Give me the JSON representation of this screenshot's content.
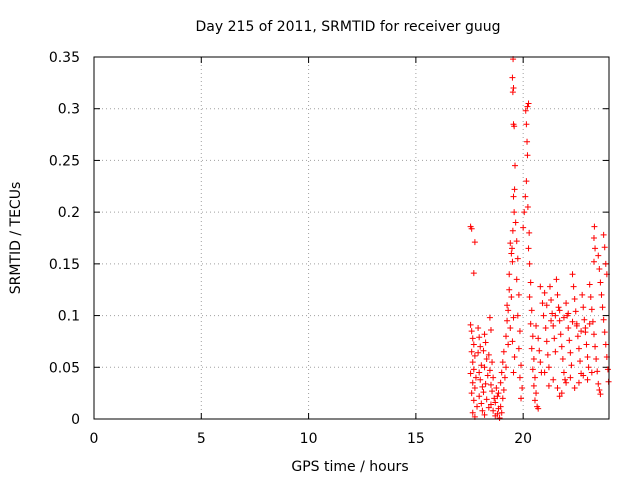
{
  "chart_data": {
    "type": "scatter",
    "title": "Day 215 of 2011, SRMTID for receiver guug",
    "xlabel": "GPS time / hours",
    "ylabel": "SRMTID / TECUs",
    "xlim": [
      0,
      24
    ],
    "ylim": [
      0,
      0.35
    ],
    "xticks": [
      0,
      5,
      10,
      15,
      20
    ],
    "xtick_labels": [
      "0",
      "5",
      "10",
      "15",
      "20"
    ],
    "yticks": [
      0,
      0.05,
      0.1,
      0.15,
      0.2,
      0.25,
      0.3,
      0.35
    ],
    "ytick_labels": [
      "0",
      "0.05",
      "0.1",
      "0.15",
      "0.2",
      "0.25",
      "0.3",
      "0.35"
    ],
    "grid": true,
    "legend": "none",
    "marker": "plus",
    "color": "#ff0000",
    "series": [
      {
        "name": "SRMTID",
        "points": [
          [
            17.55,
            0.186
          ],
          [
            17.6,
            0.184
          ],
          [
            17.75,
            0.171
          ],
          [
            17.7,
            0.141
          ],
          [
            17.55,
            0.091
          ],
          [
            17.6,
            0.085
          ],
          [
            17.65,
            0.078
          ],
          [
            17.7,
            0.072
          ],
          [
            17.6,
            0.065
          ],
          [
            17.75,
            0.061
          ],
          [
            17.65,
            0.055
          ],
          [
            17.7,
            0.048
          ],
          [
            17.55,
            0.044
          ],
          [
            17.8,
            0.04
          ],
          [
            17.65,
            0.035
          ],
          [
            17.75,
            0.03
          ],
          [
            17.6,
            0.025
          ],
          [
            17.7,
            0.018
          ],
          [
            17.85,
            0.012
          ],
          [
            17.65,
            0.006
          ],
          [
            17.75,
            0.002
          ],
          [
            17.9,
            0.088
          ],
          [
            17.95,
            0.079
          ],
          [
            18.0,
            0.07
          ],
          [
            17.9,
            0.064
          ],
          [
            18.05,
            0.052
          ],
          [
            17.95,
            0.045
          ],
          [
            18.0,
            0.038
          ],
          [
            18.1,
            0.031
          ],
          [
            17.95,
            0.022
          ],
          [
            18.05,
            0.015
          ],
          [
            18.1,
            0.008
          ],
          [
            18.2,
            0.082
          ],
          [
            18.25,
            0.074
          ],
          [
            18.15,
            0.066
          ],
          [
            18.3,
            0.058
          ],
          [
            18.2,
            0.05
          ],
          [
            18.35,
            0.042
          ],
          [
            18.25,
            0.034
          ],
          [
            18.15,
            0.026
          ],
          [
            18.3,
            0.019
          ],
          [
            18.4,
            0.011
          ],
          [
            18.2,
            0.004
          ],
          [
            18.45,
            0.098
          ],
          [
            18.5,
            0.086
          ],
          [
            18.4,
            0.062
          ],
          [
            18.55,
            0.055
          ],
          [
            18.45,
            0.047
          ],
          [
            18.6,
            0.04
          ],
          [
            18.5,
            0.033
          ],
          [
            18.55,
            0.027
          ],
          [
            18.65,
            0.02
          ],
          [
            18.5,
            0.014
          ],
          [
            18.6,
            0.008
          ],
          [
            18.7,
            0.003
          ],
          [
            18.75,
            0.03
          ],
          [
            18.8,
            0.022
          ],
          [
            18.7,
            0.016
          ],
          [
            18.85,
            0.01
          ],
          [
            18.8,
            0.005
          ],
          [
            18.9,
            0.001
          ],
          [
            18.95,
            0.012
          ],
          [
            19.0,
            0.006
          ],
          [
            18.85,
            0.025
          ],
          [
            18.95,
            0.035
          ],
          [
            19.05,
            0.02
          ],
          [
            19.0,
            0.045
          ],
          [
            19.1,
            0.028
          ],
          [
            19.05,
            0.055
          ],
          [
            19.15,
            0.04
          ],
          [
            19.1,
            0.065
          ],
          [
            19.2,
            0.05
          ],
          [
            19.2,
            0.08
          ],
          [
            19.25,
            0.095
          ],
          [
            19.3,
            0.072
          ],
          [
            19.25,
            0.11
          ],
          [
            19.35,
            0.125
          ],
          [
            19.3,
            0.105
          ],
          [
            19.4,
            0.088
          ],
          [
            19.35,
            0.14
          ],
          [
            19.45,
            0.16
          ],
          [
            19.4,
            0.17
          ],
          [
            19.5,
            0.152
          ],
          [
            19.45,
            0.118
          ],
          [
            19.55,
            0.098
          ],
          [
            19.5,
            0.075
          ],
          [
            19.6,
            0.06
          ],
          [
            19.55,
            0.045
          ],
          [
            19.48,
            0.165
          ],
          [
            19.52,
            0.182
          ],
          [
            19.58,
            0.2
          ],
          [
            19.55,
            0.215
          ],
          [
            19.6,
            0.222
          ],
          [
            19.62,
            0.245
          ],
          [
            19.58,
            0.283
          ],
          [
            19.55,
            0.285
          ],
          [
            19.52,
            0.316
          ],
          [
            19.55,
            0.32
          ],
          [
            19.5,
            0.33
          ],
          [
            19.53,
            0.348
          ],
          [
            19.65,
            0.19
          ],
          [
            19.7,
            0.172
          ],
          [
            19.75,
            0.155
          ],
          [
            19.7,
            0.135
          ],
          [
            19.8,
            0.12
          ],
          [
            19.75,
            0.1
          ],
          [
            19.85,
            0.085
          ],
          [
            19.8,
            0.068
          ],
          [
            19.9,
            0.052
          ],
          [
            19.85,
            0.04
          ],
          [
            19.95,
            0.03
          ],
          [
            19.9,
            0.02
          ],
          [
            20.0,
            0.185
          ],
          [
            20.05,
            0.2
          ],
          [
            20.1,
            0.215
          ],
          [
            20.15,
            0.23
          ],
          [
            20.2,
            0.255
          ],
          [
            20.18,
            0.268
          ],
          [
            20.15,
            0.285
          ],
          [
            20.12,
            0.298
          ],
          [
            20.2,
            0.302
          ],
          [
            20.25,
            0.305
          ],
          [
            20.22,
            0.205
          ],
          [
            20.28,
            0.18
          ],
          [
            20.25,
            0.165
          ],
          [
            20.3,
            0.15
          ],
          [
            20.35,
            0.132
          ],
          [
            20.3,
            0.118
          ],
          [
            20.4,
            0.105
          ],
          [
            20.35,
            0.092
          ],
          [
            20.45,
            0.08
          ],
          [
            20.4,
            0.068
          ],
          [
            20.5,
            0.058
          ],
          [
            20.45,
            0.048
          ],
          [
            20.55,
            0.04
          ],
          [
            20.5,
            0.032
          ],
          [
            20.6,
            0.025
          ],
          [
            20.55,
            0.018
          ],
          [
            20.65,
            0.012
          ],
          [
            20.7,
            0.01
          ],
          [
            20.6,
            0.09
          ],
          [
            20.7,
            0.078
          ],
          [
            20.75,
            0.066
          ],
          [
            20.8,
            0.055
          ],
          [
            20.85,
            0.045
          ],
          [
            20.9,
            0.112
          ],
          [
            20.95,
            0.1
          ],
          [
            21.0,
            0.122
          ],
          [
            21.05,
            0.088
          ],
          [
            21.1,
            0.075
          ],
          [
            21.15,
            0.062
          ],
          [
            21.2,
            0.05
          ],
          [
            21.25,
            0.128
          ],
          [
            21.3,
            0.115
          ],
          [
            21.35,
            0.102
          ],
          [
            21.4,
            0.09
          ],
          [
            21.45,
            0.078
          ],
          [
            21.5,
            0.065
          ],
          [
            21.55,
            0.135
          ],
          [
            21.6,
            0.12
          ],
          [
            21.65,
            0.108
          ],
          [
            21.7,
            0.095
          ],
          [
            21.75,
            0.082
          ],
          [
            21.8,
            0.07
          ],
          [
            21.85,
            0.058
          ],
          [
            21.9,
            0.045
          ],
          [
            21.95,
            0.038
          ],
          [
            21.7,
            0.022
          ],
          [
            22.0,
            0.112
          ],
          [
            22.05,
            0.1
          ],
          [
            22.1,
            0.088
          ],
          [
            22.15,
            0.076
          ],
          [
            22.2,
            0.064
          ],
          [
            22.25,
            0.052
          ],
          [
            22.3,
            0.14
          ],
          [
            22.35,
            0.128
          ],
          [
            22.4,
            0.116
          ],
          [
            22.45,
            0.104
          ],
          [
            22.5,
            0.092
          ],
          [
            22.55,
            0.08
          ],
          [
            22.6,
            0.068
          ],
          [
            22.65,
            0.056
          ],
          [
            22.7,
            0.044
          ],
          [
            22.75,
            0.12
          ],
          [
            22.8,
            0.108
          ],
          [
            22.85,
            0.096
          ],
          [
            22.9,
            0.084
          ],
          [
            22.95,
            0.072
          ],
          [
            23.0,
            0.06
          ],
          [
            23.05,
            0.05
          ],
          [
            23.1,
            0.13
          ],
          [
            23.15,
            0.118
          ],
          [
            23.2,
            0.106
          ],
          [
            23.25,
            0.094
          ],
          [
            23.3,
            0.082
          ],
          [
            23.35,
            0.07
          ],
          [
            23.4,
            0.058
          ],
          [
            23.45,
            0.046
          ],
          [
            23.5,
            0.034
          ],
          [
            23.55,
            0.028
          ],
          [
            23.6,
            0.024
          ],
          [
            23.3,
            0.152
          ],
          [
            23.35,
            0.165
          ],
          [
            23.3,
            0.175
          ],
          [
            23.32,
            0.186
          ],
          [
            23.5,
            0.158
          ],
          [
            23.55,
            0.145
          ],
          [
            23.6,
            0.132
          ],
          [
            23.65,
            0.12
          ],
          [
            23.7,
            0.108
          ],
          [
            23.75,
            0.096
          ],
          [
            23.8,
            0.084
          ],
          [
            23.85,
            0.072
          ],
          [
            23.9,
            0.06
          ],
          [
            23.75,
            0.178
          ],
          [
            23.8,
            0.166
          ],
          [
            23.85,
            0.15
          ],
          [
            23.9,
            0.14
          ],
          [
            23.95,
            0.048
          ],
          [
            23.98,
            0.036
          ],
          [
            21.0,
            0.045
          ],
          [
            21.2,
            0.032
          ],
          [
            21.4,
            0.038
          ],
          [
            21.6,
            0.03
          ],
          [
            21.8,
            0.025
          ],
          [
            22.0,
            0.035
          ],
          [
            22.2,
            0.04
          ],
          [
            22.4,
            0.03
          ],
          [
            22.6,
            0.035
          ],
          [
            22.8,
            0.042
          ],
          [
            23.0,
            0.038
          ],
          [
            23.2,
            0.045
          ],
          [
            20.8,
            0.128
          ],
          [
            21.1,
            0.11
          ],
          [
            21.3,
            0.095
          ],
          [
            21.5,
            0.1
          ],
          [
            21.7,
            0.105
          ],
          [
            21.9,
            0.098
          ],
          [
            22.1,
            0.102
          ],
          [
            22.3,
            0.094
          ],
          [
            22.5,
            0.09
          ],
          [
            22.7,
            0.085
          ],
          [
            22.9,
            0.088
          ],
          [
            23.1,
            0.092
          ]
        ]
      }
    ]
  }
}
